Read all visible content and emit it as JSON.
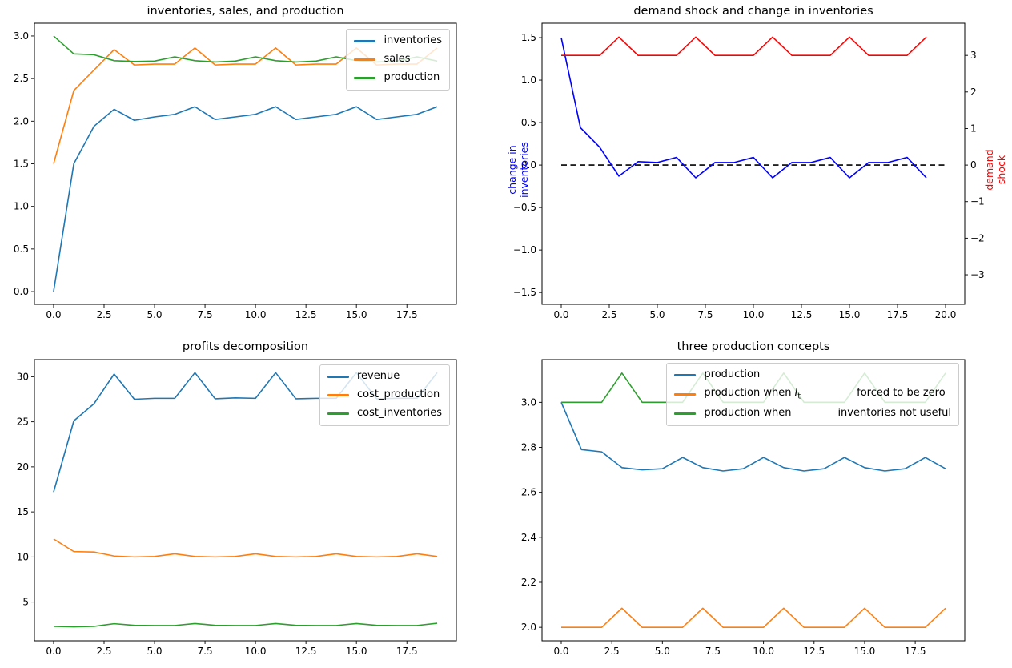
{
  "figure": {
    "background": "#ffffff",
    "spine_color": "#000000",
    "tick_color": "#000000"
  },
  "chart_data": [
    {
      "id": "inventories-sales-production",
      "type": "line",
      "title": "inventories, sales, and production",
      "xlim": [
        -0.95,
        19.95
      ],
      "ylim": [
        -0.15,
        3.15
      ],
      "grid": false,
      "xticks": {
        "values": [
          0,
          2.5,
          5,
          7.5,
          10,
          12.5,
          15,
          17.5
        ],
        "labels": [
          "0.0",
          "2.5",
          "5.0",
          "7.5",
          "10.0",
          "12.5",
          "15.0",
          "17.5"
        ]
      },
      "yticks": {
        "values": [
          0,
          0.5,
          1,
          1.5,
          2,
          2.5,
          3
        ],
        "labels": [
          "0.0",
          "0.5",
          "1.0",
          "1.5",
          "2.0",
          "2.5",
          "3.0"
        ]
      },
      "x": [
        0,
        1,
        2,
        3,
        4,
        5,
        6,
        7,
        8,
        9,
        10,
        11,
        12,
        13,
        14,
        15,
        16,
        17,
        18,
        19
      ],
      "series": [
        {
          "name": "inventories",
          "color": "#1f77b4",
          "values": [
            0.0,
            1.5,
            1.94,
            2.14,
            2.01,
            2.05,
            2.08,
            2.17,
            2.02,
            2.05,
            2.08,
            2.17,
            2.02,
            2.05,
            2.08,
            2.17,
            2.02,
            2.05,
            2.08,
            2.17
          ]
        },
        {
          "name": "sales",
          "color": "#ff7f0e",
          "values": [
            1.5,
            2.36,
            2.6,
            2.84,
            2.66,
            2.67,
            2.67,
            2.86,
            2.66,
            2.67,
            2.67,
            2.86,
            2.66,
            2.67,
            2.67,
            2.86,
            2.66,
            2.67,
            2.67,
            2.86
          ]
        },
        {
          "name": "production",
          "color": "#2ca02c",
          "values": [
            3.0,
            2.79,
            2.78,
            2.71,
            2.7,
            2.705,
            2.755,
            2.71,
            2.695,
            2.705,
            2.755,
            2.71,
            2.695,
            2.705,
            2.755,
            2.71,
            2.695,
            2.705,
            2.755,
            2.705
          ]
        }
      ],
      "legend": {
        "location": "upper right",
        "entries": [
          {
            "label": "inventories",
            "color": "#1f77b4"
          },
          {
            "label": "sales",
            "color": "#ff7f0e"
          },
          {
            "label": "production",
            "color": "#2ca02c"
          }
        ]
      }
    },
    {
      "id": "demand-shock-and-change-in-inventories",
      "type": "line",
      "title": "demand shock and change in inventories",
      "xlim": [
        -1,
        21
      ],
      "ylim": [
        -1.64,
        1.67
      ],
      "ylim_right": [
        -3.81,
        3.88
      ],
      "grid": false,
      "xticks": {
        "values": [
          0,
          2.5,
          5,
          7.5,
          10,
          12.5,
          15,
          17.5,
          20
        ],
        "labels": [
          "0.0",
          "2.5",
          "5.0",
          "7.5",
          "10.0",
          "12.5",
          "15.0",
          "17.5",
          "20.0"
        ]
      },
      "yticks": {
        "values": [
          -1.5,
          -1,
          -0.5,
          0,
          0.5,
          1,
          1.5
        ],
        "labels": [
          "−1.5",
          "−1.0",
          "−0.5",
          "0.0",
          "0.5",
          "1.0",
          "1.5"
        ]
      },
      "yticks_right": {
        "values": [
          -3,
          -2,
          -1,
          0,
          1,
          2,
          3
        ],
        "labels": [
          "−3",
          "−2",
          "−1",
          "0",
          "1",
          "2",
          "3"
        ]
      },
      "ylabel_left": {
        "text": "change in inventories",
        "color": "#0000ff"
      },
      "ylabel_right": {
        "text": "demand shock",
        "color": "#ff0000"
      },
      "x": [
        0,
        1,
        2,
        3,
        4,
        5,
        6,
        7,
        8,
        9,
        10,
        11,
        12,
        13,
        14,
        15,
        16,
        17,
        18,
        19
      ],
      "series": [
        {
          "name": "zero line",
          "color": "#000000",
          "dashed": true,
          "x": [
            0,
            20
          ],
          "values": [
            0,
            0
          ]
        },
        {
          "name": "change in inventories",
          "color": "#0000ff",
          "values": [
            1.5,
            0.44,
            0.21,
            -0.13,
            0.04,
            0.03,
            0.09,
            -0.15,
            0.03,
            0.03,
            0.09,
            -0.15,
            0.03,
            0.03,
            0.09,
            -0.15,
            0.03,
            0.03,
            0.09,
            -0.15
          ]
        },
        {
          "name": "demand shock",
          "color": "#ff0000",
          "axis": "right",
          "values": [
            3,
            3,
            3,
            3.5,
            3,
            3,
            3,
            3.5,
            3,
            3,
            3,
            3.5,
            3,
            3,
            3,
            3.5,
            3,
            3,
            3,
            3.5
          ]
        }
      ]
    },
    {
      "id": "profits-decomposition",
      "type": "line",
      "title": "profits decomposition",
      "xlim": [
        -0.95,
        19.95
      ],
      "ylim": [
        0.7,
        31.9
      ],
      "grid": false,
      "xticks": {
        "values": [
          0,
          2.5,
          5,
          7.5,
          10,
          12.5,
          15,
          17.5
        ],
        "labels": [
          "0.0",
          "2.5",
          "5.0",
          "7.5",
          "10.0",
          "12.5",
          "15.0",
          "17.5"
        ]
      },
      "yticks": {
        "values": [
          5,
          10,
          15,
          20,
          25,
          30
        ],
        "labels": [
          "5",
          "10",
          "15",
          "20",
          "25",
          "30"
        ]
      },
      "x": [
        0,
        1,
        2,
        3,
        4,
        5,
        6,
        7,
        8,
        9,
        10,
        11,
        12,
        13,
        14,
        15,
        16,
        17,
        18,
        19
      ],
      "series": [
        {
          "name": "revenue",
          "color": "#1f77b4",
          "values": [
            17.2,
            25.1,
            27.0,
            30.3,
            27.5,
            27.6,
            27.6,
            30.45,
            27.55,
            27.65,
            27.6,
            30.45,
            27.55,
            27.6,
            27.6,
            30.45,
            27.55,
            27.6,
            27.6,
            30.45
          ]
        },
        {
          "name": "cost_production",
          "color": "#ff7f0e",
          "values": [
            12.0,
            10.6,
            10.55,
            10.1,
            10.0,
            10.05,
            10.35,
            10.05,
            10.0,
            10.05,
            10.35,
            10.05,
            10.0,
            10.05,
            10.35,
            10.05,
            10.0,
            10.05,
            10.35,
            10.05
          ]
        },
        {
          "name": "cost_inventories",
          "color": "#2ca02c",
          "values": [
            2.3,
            2.25,
            2.3,
            2.6,
            2.42,
            2.4,
            2.4,
            2.62,
            2.42,
            2.4,
            2.4,
            2.62,
            2.42,
            2.4,
            2.4,
            2.62,
            2.42,
            2.4,
            2.4,
            2.65
          ]
        }
      ],
      "legend": {
        "location": "upper right",
        "entries": [
          {
            "label": "revenue",
            "color": "#1f77b4"
          },
          {
            "label": "cost_production",
            "color": "#ff7f0e"
          },
          {
            "label": "cost_inventories",
            "color": "#2ca02c"
          }
        ]
      }
    },
    {
      "id": "three-production-concepts",
      "type": "line",
      "title": "three production concepts",
      "xlim": [
        -0.95,
        19.95
      ],
      "ylim": [
        1.94,
        3.19
      ],
      "grid": false,
      "xticks": {
        "values": [
          0,
          2.5,
          5,
          7.5,
          10,
          12.5,
          15,
          17.5
        ],
        "labels": [
          "0.0",
          "2.5",
          "5.0",
          "7.5",
          "10.0",
          "12.5",
          "15.0",
          "17.5"
        ]
      },
      "yticks": {
        "values": [
          2.0,
          2.2,
          2.4,
          2.6,
          2.8,
          3.0
        ],
        "labels": [
          "2.0",
          "2.2",
          "2.4",
          "2.6",
          "2.8",
          "3.0"
        ]
      },
      "x": [
        0,
        1,
        2,
        3,
        4,
        5,
        6,
        7,
        8,
        9,
        10,
        11,
        12,
        13,
        14,
        15,
        16,
        17,
        18,
        19
      ],
      "series": [
        {
          "name": "production",
          "color": "#1f77b4",
          "values": [
            3.0,
            2.79,
            2.78,
            2.71,
            2.7,
            2.705,
            2.755,
            2.71,
            2.695,
            2.705,
            2.755,
            2.71,
            2.695,
            2.705,
            2.755,
            2.71,
            2.695,
            2.705,
            2.755,
            2.705
          ]
        },
        {
          "name": "production when It forced to be zero",
          "color": "#ff7f0e",
          "values": [
            2.0,
            2.0,
            2.0,
            2.085,
            2.0,
            2.0,
            2.0,
            2.085,
            2.0,
            2.0,
            2.0,
            2.085,
            2.0,
            2.0,
            2.0,
            2.085,
            2.0,
            2.0,
            2.0,
            2.085
          ]
        },
        {
          "name": "production when inventories not useful",
          "color": "#2ca02c",
          "values": [
            3.0,
            3.0,
            3.0,
            3.13,
            3.0,
            3.0,
            3.0,
            3.13,
            3.0,
            3.0,
            3.0,
            3.13,
            3.0,
            3.0,
            3.0,
            3.13,
            3.0,
            3.0,
            3.0,
            3.13
          ]
        }
      ],
      "legend": {
        "location": "upper right",
        "entries": [
          {
            "label": "production",
            "color": "#1f77b4"
          },
          {
            "color": "#ff7f0e",
            "parts": [
              {
                "text": "production when "
              },
              {
                "text": "I",
                "italic": true
              },
              {
                "text": "t",
                "sub": true
              },
              {
                "gap": 70
              },
              {
                "text": "forced to be zero"
              }
            ]
          },
          {
            "color": "#2ca02c",
            "parts": [
              {
                "text": "production when"
              },
              {
                "gap": 58
              },
              {
                "text": "inventories not useful"
              }
            ]
          }
        ]
      }
    }
  ]
}
